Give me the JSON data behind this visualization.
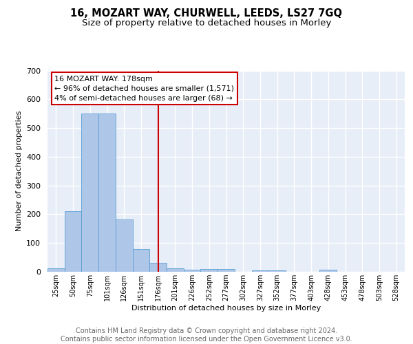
{
  "title": "16, MOZART WAY, CHURWELL, LEEDS, LS27 7GQ",
  "subtitle": "Size of property relative to detached houses in Morley",
  "xlabel": "Distribution of detached houses by size in Morley",
  "ylabel": "Number of detached properties",
  "bar_labels": [
    "25sqm",
    "50sqm",
    "75sqm",
    "101sqm",
    "126sqm",
    "151sqm",
    "176sqm",
    "201sqm",
    "226sqm",
    "252sqm",
    "277sqm",
    "302sqm",
    "327sqm",
    "352sqm",
    "377sqm",
    "403sqm",
    "428sqm",
    "453sqm",
    "478sqm",
    "503sqm",
    "528sqm"
  ],
  "bar_values": [
    12,
    210,
    550,
    550,
    183,
    78,
    30,
    13,
    7,
    10,
    10,
    0,
    5,
    5,
    0,
    0,
    8,
    0,
    0,
    0,
    0
  ],
  "bar_color": "#aec6e8",
  "bar_edge_color": "#5a9fd4",
  "vline_x_index": 6,
  "vline_color": "#cc0000",
  "annotation_text": "16 MOZART WAY: 178sqm\n← 96% of detached houses are smaller (1,571)\n4% of semi-detached houses are larger (68) →",
  "annotation_box_color": "#ffffff",
  "annotation_box_edge": "#cc0000",
  "ylim": [
    0,
    700
  ],
  "yticks": [
    0,
    100,
    200,
    300,
    400,
    500,
    600,
    700
  ],
  "background_color": "#e8eef7",
  "grid_color": "#ffffff",
  "footer_text": "Contains HM Land Registry data © Crown copyright and database right 2024.\nContains public sector information licensed under the Open Government Licence v3.0.",
  "title_fontsize": 10.5,
  "subtitle_fontsize": 9.5,
  "annot_fontsize": 8,
  "footer_fontsize": 7,
  "ylabel_fontsize": 8,
  "xlabel_fontsize": 8
}
